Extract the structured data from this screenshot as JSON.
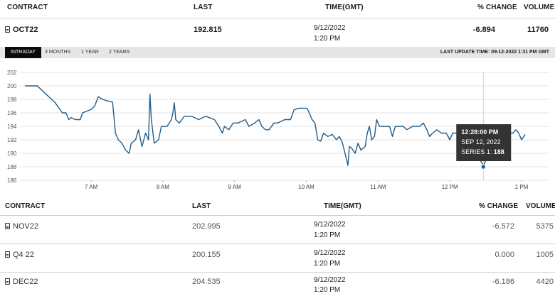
{
  "header": {
    "contract": "CONTRACT",
    "last": "LAST",
    "time": "TIME(GMT)",
    "pct_change": "% CHANGE",
    "volume": "VOLUME"
  },
  "main_contract": {
    "name": "OCT22",
    "last": "192.815",
    "date": "9/12/2022",
    "time": "1:20 PM",
    "change": "-6.894",
    "volume": "11760"
  },
  "tabs": {
    "intraday": "INTRADAY",
    "three_months": "3 MONTHS",
    "one_year": "1 YEAR",
    "two_years": "2 YEARS",
    "active": "INTRADAY"
  },
  "last_update": "LAST UPDATE TIME: 09-12-2022 1:31 PM GMT",
  "chart_data": {
    "type": "line",
    "title": "",
    "xlabel": "",
    "ylabel": "",
    "ylim": [
      186,
      202
    ],
    "y_ticks": [
      "186",
      "188",
      "190",
      "192",
      "194",
      "196",
      "198",
      "200",
      "202"
    ],
    "x_ticks": [
      "7 AM",
      "8 AM",
      "9 AM",
      "10 AM",
      "11 AM",
      "12 PM",
      "1 PM"
    ],
    "x_tick_hours": [
      7,
      8,
      9,
      10,
      11,
      12,
      13
    ],
    "line_color": "#1f5d8a",
    "grid": "horizontal",
    "series": [
      {
        "name": "Series 1",
        "points": [
          [
            6.08,
            200.0
          ],
          [
            6.25,
            200.0
          ],
          [
            6.5,
            197.5
          ],
          [
            6.6,
            196.0
          ],
          [
            6.65,
            196.0
          ],
          [
            6.69,
            195.0
          ],
          [
            6.72,
            195.3
          ],
          [
            6.78,
            195.0
          ],
          [
            6.85,
            195.0
          ],
          [
            6.88,
            196.0
          ],
          [
            7.0,
            196.5
          ],
          [
            7.05,
            197.0
          ],
          [
            7.1,
            198.4
          ],
          [
            7.16,
            198.0
          ],
          [
            7.22,
            197.8
          ],
          [
            7.3,
            197.6
          ],
          [
            7.34,
            193.0
          ],
          [
            7.38,
            192.0
          ],
          [
            7.43,
            191.5
          ],
          [
            7.48,
            190.5
          ],
          [
            7.53,
            190.0
          ],
          [
            7.56,
            191.5
          ],
          [
            7.62,
            192.0
          ],
          [
            7.66,
            193.5
          ],
          [
            7.71,
            191.0
          ],
          [
            7.76,
            193.0
          ],
          [
            7.8,
            192.0
          ],
          [
            7.82,
            198.8
          ],
          [
            7.84,
            195.0
          ],
          [
            7.88,
            191.5
          ],
          [
            7.94,
            192.0
          ],
          [
            7.98,
            194.0
          ],
          [
            8.06,
            194.0
          ],
          [
            8.12,
            195.0
          ],
          [
            8.14,
            196.0
          ],
          [
            8.16,
            197.5
          ],
          [
            8.18,
            195.0
          ],
          [
            8.23,
            194.5
          ],
          [
            8.3,
            195.5
          ],
          [
            8.4,
            195.5
          ],
          [
            8.5,
            195.0
          ],
          [
            8.6,
            195.5
          ],
          [
            8.72,
            195.0
          ],
          [
            8.78,
            194.0
          ],
          [
            8.83,
            193.0
          ],
          [
            8.86,
            194.0
          ],
          [
            8.92,
            193.5
          ],
          [
            8.98,
            194.5
          ],
          [
            9.05,
            194.5
          ],
          [
            9.15,
            195.0
          ],
          [
            9.2,
            194.0
          ],
          [
            9.28,
            194.5
          ],
          [
            9.34,
            195.0
          ],
          [
            9.38,
            194.0
          ],
          [
            9.43,
            193.5
          ],
          [
            9.48,
            193.5
          ],
          [
            9.55,
            194.5
          ],
          [
            9.6,
            194.5
          ],
          [
            9.7,
            195.0
          ],
          [
            9.78,
            195.0
          ],
          [
            9.83,
            196.5
          ],
          [
            9.9,
            196.7
          ],
          [
            10.0,
            196.7
          ],
          [
            10.02,
            196.5
          ],
          [
            10.08,
            195.0
          ],
          [
            10.12,
            194.5
          ],
          [
            10.16,
            192.0
          ],
          [
            10.2,
            191.8
          ],
          [
            10.24,
            193.0
          ],
          [
            10.3,
            192.5
          ],
          [
            10.36,
            192.8
          ],
          [
            10.42,
            192.0
          ],
          [
            10.46,
            192.5
          ],
          [
            10.5,
            191.7
          ],
          [
            10.54,
            190.0
          ],
          [
            10.58,
            188.2
          ],
          [
            10.6,
            191.0
          ],
          [
            10.63,
            190.8
          ],
          [
            10.68,
            190.0
          ],
          [
            10.72,
            191.5
          ],
          [
            10.76,
            190.5
          ],
          [
            10.82,
            191.0
          ],
          [
            10.85,
            193.0
          ],
          [
            10.88,
            194.0
          ],
          [
            10.91,
            192.0
          ],
          [
            10.95,
            192.5
          ],
          [
            10.98,
            195.0
          ],
          [
            11.02,
            194.0
          ],
          [
            11.08,
            194.0
          ],
          [
            11.16,
            194.0
          ],
          [
            11.2,
            192.5
          ],
          [
            11.24,
            194.0
          ],
          [
            11.35,
            194.0
          ],
          [
            11.4,
            193.5
          ],
          [
            11.48,
            194.0
          ],
          [
            11.58,
            194.0
          ],
          [
            11.63,
            194.5
          ],
          [
            11.68,
            193.5
          ],
          [
            11.72,
            192.5
          ],
          [
            11.76,
            193.0
          ],
          [
            11.82,
            193.5
          ],
          [
            11.88,
            193.0
          ],
          [
            11.95,
            193.0
          ],
          [
            12.0,
            192.0
          ],
          [
            12.04,
            193.0
          ],
          [
            12.1,
            193.0
          ],
          [
            12.14,
            194.0
          ],
          [
            12.2,
            193.0
          ],
          [
            12.25,
            192.5
          ],
          [
            12.3,
            191.5
          ],
          [
            12.35,
            190.5
          ],
          [
            12.4,
            189.5
          ],
          [
            12.45,
            188.5
          ],
          [
            12.467,
            188.0
          ],
          [
            12.5,
            189.0
          ],
          [
            12.55,
            191.0
          ],
          [
            12.62,
            192.0
          ],
          [
            12.7,
            193.5
          ],
          [
            12.75,
            192.5
          ],
          [
            12.82,
            193.0
          ],
          [
            12.88,
            193.0
          ],
          [
            12.92,
            193.5
          ],
          [
            12.96,
            193.0
          ],
          [
            13.0,
            192.0
          ],
          [
            13.05,
            192.8
          ]
        ]
      }
    ],
    "tooltip": {
      "time": "12:28:00 PM",
      "date": "SEP 12, 2022",
      "series_label": "SERIES 1:",
      "value": "188",
      "hour": 12.467,
      "y": 188
    }
  },
  "rows": [
    {
      "contract": "NOV22",
      "last": "202.995",
      "date": "9/12/2022",
      "time": "1:20 PM",
      "change": "-6.572",
      "volume": "5375"
    },
    {
      "contract": "Q4 22",
      "last": "200.155",
      "date": "9/12/2022",
      "time": "1:20 PM",
      "change": "0.000",
      "volume": "1005"
    },
    {
      "contract": "DEC22",
      "last": "204.535",
      "date": "9/12/2022",
      "time": "1:20 PM",
      "change": "-6.186",
      "volume": "4420"
    }
  ]
}
